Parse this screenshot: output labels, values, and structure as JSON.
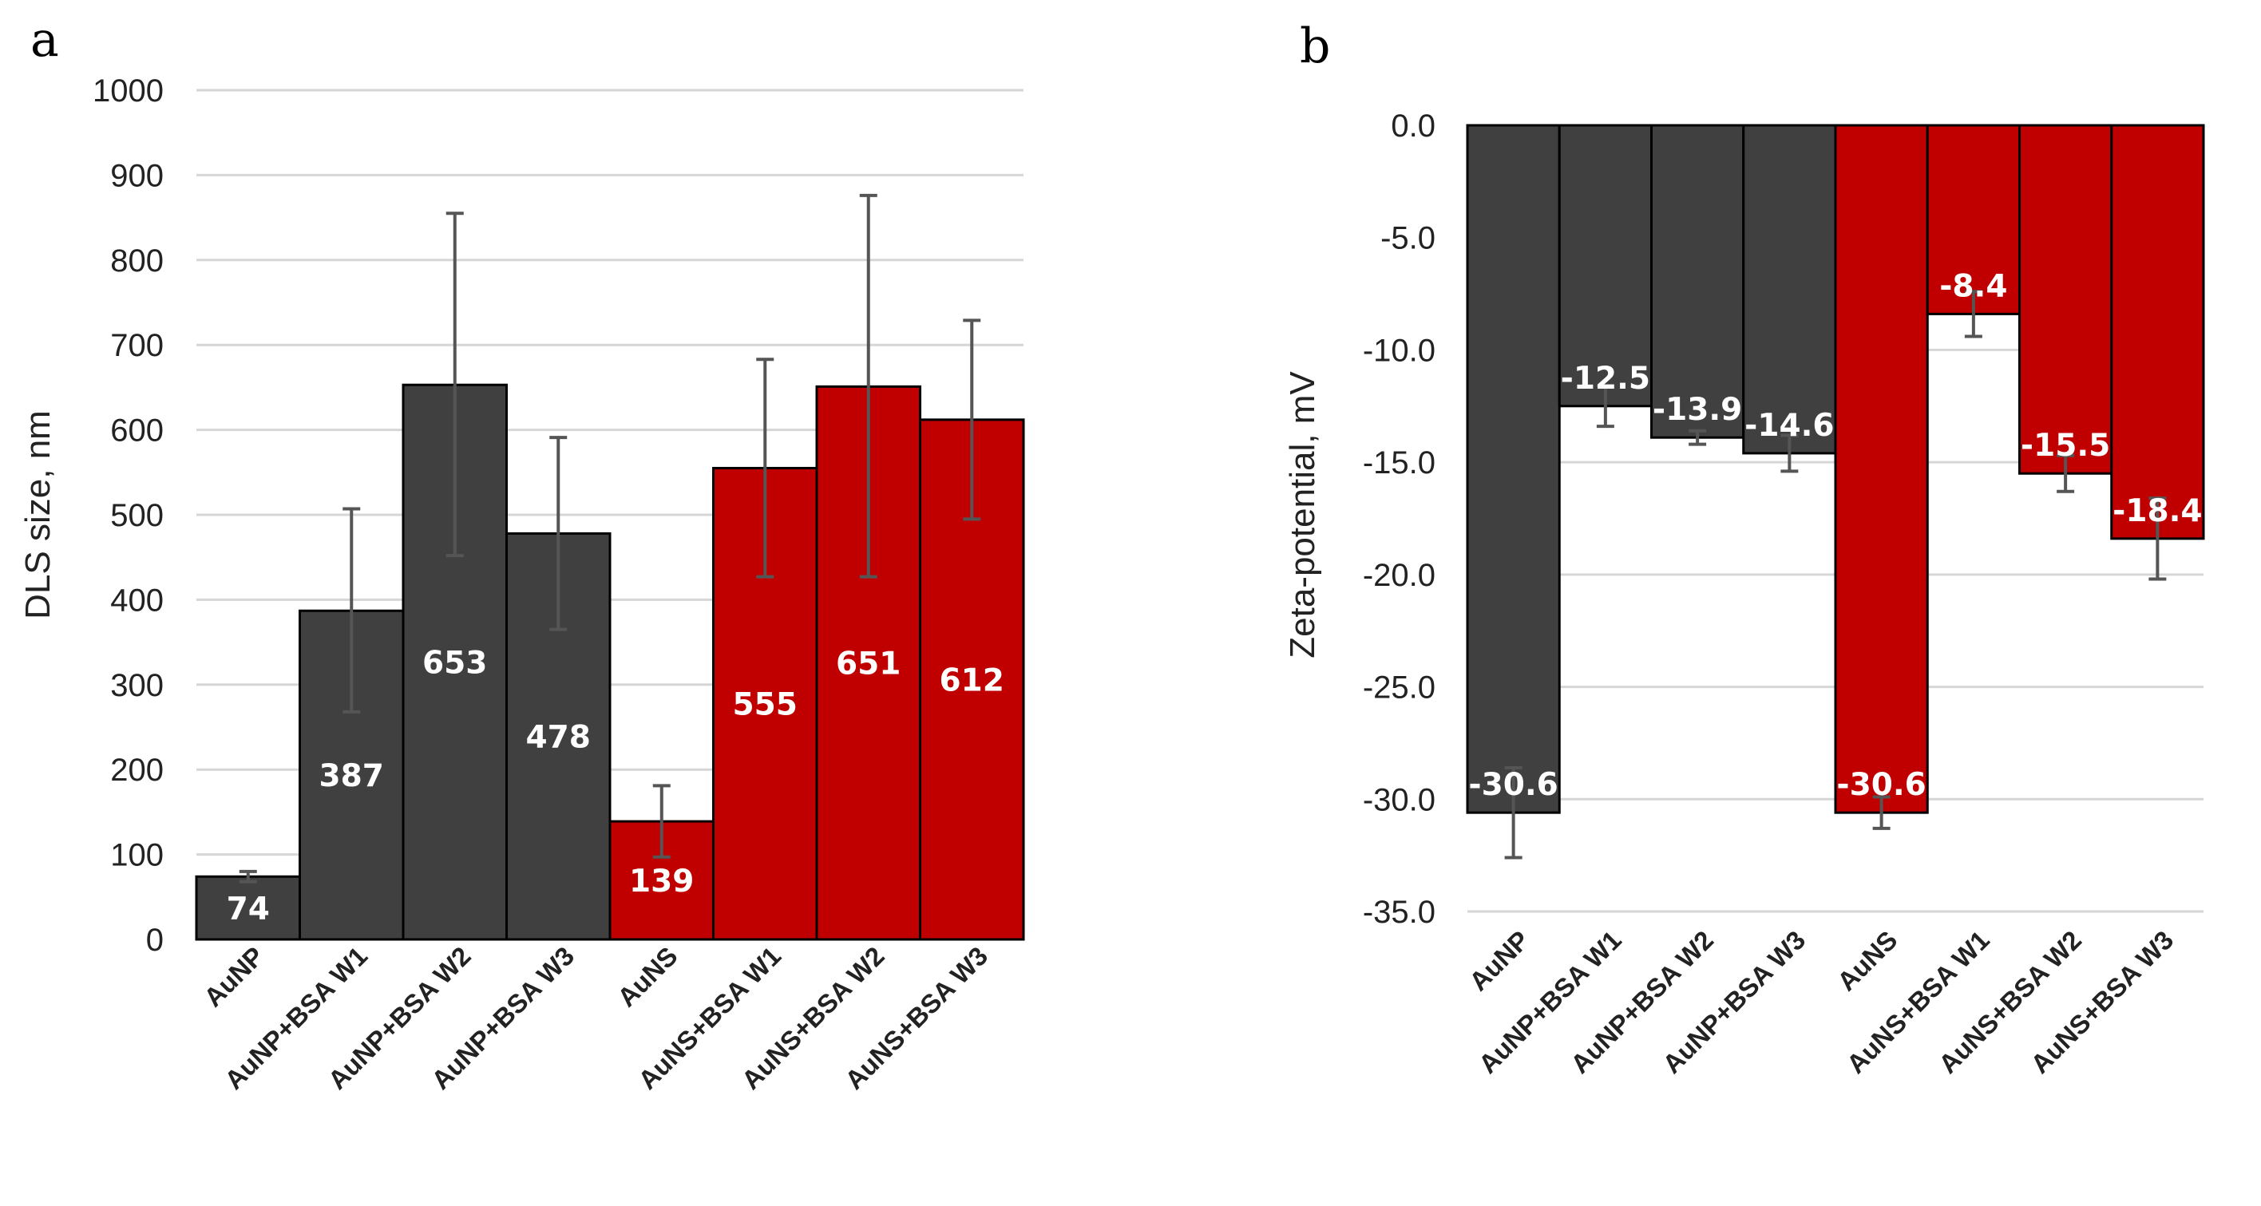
{
  "chart_data": [
    {
      "panel": "a",
      "type": "bar",
      "title": "",
      "xlabel": "",
      "ylabel": "DLS size, nm",
      "ylim": [
        0,
        1000
      ],
      "yticks": [
        0,
        100,
        200,
        300,
        400,
        500,
        600,
        700,
        800,
        900,
        1000
      ],
      "ytick_labels": [
        "0",
        "100",
        "200",
        "300",
        "400",
        "500",
        "600",
        "700",
        "800",
        "900",
        "1000"
      ],
      "grid": true,
      "categories": [
        "AuNP",
        "AuNP+BSA W1",
        "AuNP+BSA W2",
        "AuNP+BSA W3",
        "AuNS",
        "AuNS+BSA W1",
        "AuNS+BSA W2",
        "AuNS+BSA W3"
      ],
      "values": [
        74,
        387,
        653,
        478,
        139,
        555,
        651,
        612
      ],
      "value_labels": [
        "74",
        "387",
        "653",
        "478",
        "139",
        "555",
        "651",
        "612"
      ],
      "error_low": [
        68,
        268,
        452,
        365,
        97,
        427,
        427,
        495
      ],
      "error_high": [
        80,
        507,
        855,
        591,
        181,
        683,
        876,
        729
      ],
      "colors": [
        "#404040",
        "#404040",
        "#404040",
        "#404040",
        "#c00000",
        "#c00000",
        "#c00000",
        "#c00000"
      ]
    },
    {
      "panel": "b",
      "type": "bar",
      "title": "",
      "xlabel": "",
      "ylabel": "Zeta-potential, mV",
      "ylim": [
        -35,
        0
      ],
      "yticks": [
        0,
        -5,
        -10,
        -15,
        -20,
        -25,
        -30,
        -35
      ],
      "ytick_labels": [
        "0.0",
        "-5.0",
        "-10.0",
        "-15.0",
        "-20.0",
        "-25.0",
        "-30.0",
        "-35.0"
      ],
      "grid": true,
      "categories": [
        "AuNP",
        "AuNP+BSA W1",
        "AuNP+BSA W2",
        "AuNP+BSA W3",
        "AuNS",
        "AuNS+BSA W1",
        "AuNS+BSA W2",
        "AuNS+BSA W3"
      ],
      "values": [
        -30.6,
        -12.5,
        -13.9,
        -14.6,
        -30.6,
        -8.4,
        -15.5,
        -18.4
      ],
      "value_labels": [
        "-30.6",
        "-12.5",
        "-13.9",
        "-14.6",
        "-30.6",
        "-8.4",
        "-15.5",
        "-18.4"
      ],
      "error_low": [
        -32.6,
        -13.4,
        -14.2,
        -15.4,
        -31.3,
        -9.4,
        -16.3,
        -20.2
      ],
      "error_high": [
        -28.6,
        -11.6,
        -13.6,
        -13.8,
        -29.9,
        -7.4,
        -14.7,
        -16.6
      ],
      "colors": [
        "#404040",
        "#404040",
        "#404040",
        "#404040",
        "#c00000",
        "#c00000",
        "#c00000",
        "#c00000"
      ]
    }
  ]
}
